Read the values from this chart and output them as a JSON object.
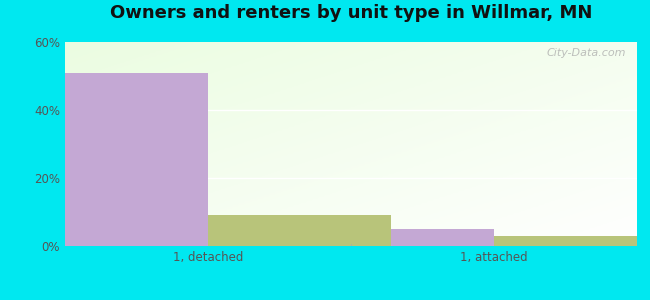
{
  "title": "Owners and renters by unit type in Willmar, MN",
  "categories": [
    "1, detached",
    "1, attached"
  ],
  "owner_values": [
    51,
    5
  ],
  "renter_values": [
    9,
    3
  ],
  "owner_color": "#c4a8d4",
  "renter_color": "#b8c47a",
  "ylim": [
    0,
    60
  ],
  "yticks": [
    0,
    20,
    40,
    60
  ],
  "ytick_labels": [
    "0%",
    "20%",
    "40%",
    "60%"
  ],
  "bar_width": 0.32,
  "outer_color": "#00e8f0",
  "watermark": "City-Data.com",
  "title_fontsize": 13,
  "tick_fontsize": 8.5,
  "legend_fontsize": 9,
  "group_positions": [
    0.25,
    0.75
  ]
}
